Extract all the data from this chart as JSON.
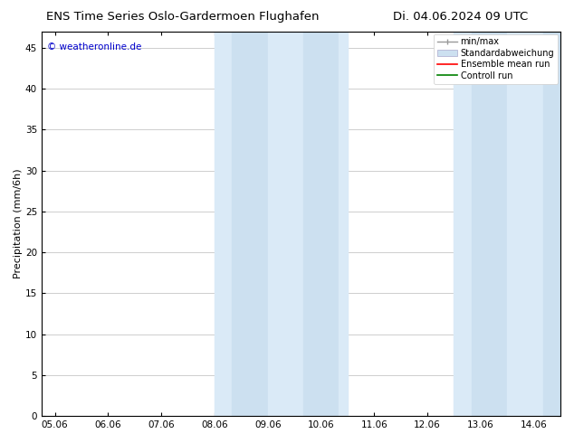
{
  "title_left": "ENS Time Series Oslo-Gardermoen Flughafen",
  "title_right": "Di. 04.06.2024 09 UTC",
  "ylabel": "Precipitation (mm/6h)",
  "watermark": "© weatheronline.de",
  "watermark_color": "#0000cc",
  "xlim_start": 4.75,
  "xlim_end": 14.5,
  "ylim_bottom": 0,
  "ylim_top": 47,
  "yticks": [
    0,
    5,
    10,
    15,
    20,
    25,
    30,
    35,
    40,
    45
  ],
  "xtick_labels": [
    "05.06",
    "06.06",
    "07.06",
    "08.06",
    "09.06",
    "10.06",
    "11.06",
    "12.06",
    "13.06",
    "14.06"
  ],
  "xtick_positions": [
    5,
    6,
    7,
    8,
    9,
    10,
    11,
    12,
    13,
    14
  ],
  "shaded_regions": [
    {
      "xmin": 8.0,
      "xmax": 8.33,
      "color": "#daeaf7"
    },
    {
      "xmin": 8.33,
      "xmax": 9.0,
      "color": "#cce0f0"
    },
    {
      "xmin": 9.0,
      "xmax": 9.67,
      "color": "#daeaf7"
    },
    {
      "xmin": 9.67,
      "xmax": 10.33,
      "color": "#cce0f0"
    },
    {
      "xmin": 10.33,
      "xmax": 10.5,
      "color": "#daeaf7"
    },
    {
      "xmin": 12.5,
      "xmax": 12.83,
      "color": "#daeaf7"
    },
    {
      "xmin": 12.83,
      "xmax": 13.5,
      "color": "#cce0f0"
    },
    {
      "xmin": 13.5,
      "xmax": 14.17,
      "color": "#daeaf7"
    },
    {
      "xmin": 14.17,
      "xmax": 14.5,
      "color": "#cce0f0"
    }
  ],
  "legend_items": [
    {
      "label": "min/max",
      "color": "#aaaaaa"
    },
    {
      "label": "Standardabweichung",
      "color": "#cce0f0"
    },
    {
      "label": "Ensemble mean run",
      "color": "#ff0000"
    },
    {
      "label": "Controll run",
      "color": "#008000"
    }
  ],
  "bg_color": "#ffffff",
  "grid_color": "#bbbbbb",
  "tick_color": "#000000",
  "title_fontsize": 9.5,
  "label_fontsize": 8,
  "tick_fontsize": 7.5,
  "legend_fontsize": 7.0
}
